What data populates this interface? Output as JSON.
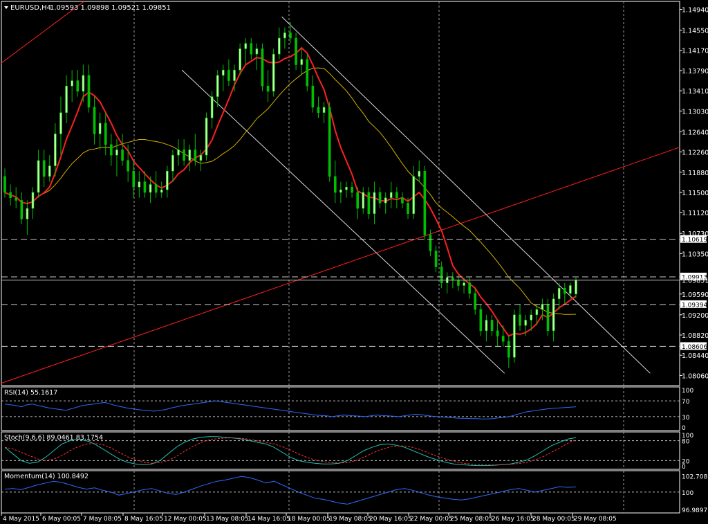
{
  "chart_data": {
    "type": "candlestick",
    "symbol_header": "EURUSD,H4",
    "ohlc_header": "1.09593 1.09898 1.09521 1.09851",
    "current_price": "1.09851",
    "price_axis": {
      "ylim": [
        1.0787,
        1.1509
      ],
      "ticks": [
        "1.14940",
        "1.14550",
        "1.14170",
        "1.13790",
        "1.13410",
        "1.13030",
        "1.12640",
        "1.12260",
        "1.11880",
        "1.11500",
        "1.11120",
        "1.10730",
        "1.10350",
        "1.09590",
        "1.09200",
        "1.08820",
        "1.08440",
        "1.08060"
      ]
    },
    "time_labels": [
      "4 May 2015",
      "6 May 00:05",
      "7 May 08:05",
      "8 May 16:05",
      "12 May 00:05",
      "13 May 08:05",
      "14 May 16:05",
      "18 May 00:05",
      "19 May 08:05",
      "20 May 16:05",
      "22 May 00:05",
      "25 May 08:05",
      "26 May 16:05",
      "28 May 00:05",
      "29 May 08:05"
    ],
    "candles_ohlc": [
      [
        1.118,
        1.1195,
        1.114,
        1.115
      ],
      [
        1.115,
        1.1165,
        1.1125,
        1.114
      ],
      [
        1.114,
        1.116,
        1.112,
        1.1135
      ],
      [
        1.1135,
        1.115,
        1.109,
        1.11
      ],
      [
        1.11,
        1.1135,
        1.107,
        1.112
      ],
      [
        1.112,
        1.116,
        1.11,
        1.115
      ],
      [
        1.115,
        1.123,
        1.114,
        1.121
      ],
      [
        1.121,
        1.123,
        1.116,
        1.118
      ],
      [
        1.118,
        1.122,
        1.117,
        1.12
      ],
      [
        1.12,
        1.128,
        1.118,
        1.126
      ],
      [
        1.126,
        1.133,
        1.122,
        1.13
      ],
      [
        1.13,
        1.137,
        1.128,
        1.135
      ],
      [
        1.135,
        1.138,
        1.132,
        1.136
      ],
      [
        1.136,
        1.138,
        1.133,
        1.134
      ],
      [
        1.134,
        1.139,
        1.132,
        1.137
      ],
      [
        1.137,
        1.139,
        1.13,
        1.131
      ],
      [
        1.131,
        1.133,
        1.124,
        1.126
      ],
      [
        1.126,
        1.13,
        1.123,
        1.128
      ],
      [
        1.128,
        1.13,
        1.122,
        1.124
      ],
      [
        1.124,
        1.126,
        1.12,
        1.122
      ],
      [
        1.122,
        1.125,
        1.118,
        1.123
      ],
      [
        1.123,
        1.126,
        1.12,
        1.121
      ],
      [
        1.121,
        1.124,
        1.117,
        1.119
      ],
      [
        1.119,
        1.121,
        1.114,
        1.116
      ],
      [
        1.116,
        1.119,
        1.114,
        1.117
      ],
      [
        1.117,
        1.119,
        1.114,
        1.115
      ],
      [
        1.115,
        1.118,
        1.113,
        1.1165
      ],
      [
        1.1165,
        1.119,
        1.114,
        1.115
      ],
      [
        1.115,
        1.117,
        1.114,
        1.1155
      ],
      [
        1.1155,
        1.12,
        1.114,
        1.119
      ],
      [
        1.119,
        1.123,
        1.117,
        1.122
      ],
      [
        1.122,
        1.125,
        1.12,
        1.123
      ],
      [
        1.123,
        1.125,
        1.12,
        1.121
      ],
      [
        1.121,
        1.124,
        1.119,
        1.123
      ],
      [
        1.123,
        1.126,
        1.12,
        1.121
      ],
      [
        1.121,
        1.123,
        1.119,
        1.122
      ],
      [
        1.122,
        1.13,
        1.121,
        1.129
      ],
      [
        1.129,
        1.134,
        1.127,
        1.133
      ],
      [
        1.133,
        1.138,
        1.131,
        1.137
      ],
      [
        1.137,
        1.139,
        1.134,
        1.138
      ],
      [
        1.138,
        1.14,
        1.135,
        1.136
      ],
      [
        1.136,
        1.139,
        1.134,
        1.138
      ],
      [
        1.138,
        1.143,
        1.137,
        1.142
      ],
      [
        1.142,
        1.144,
        1.139,
        1.143
      ],
      [
        1.143,
        1.144,
        1.14,
        1.141
      ],
      [
        1.141,
        1.143,
        1.138,
        1.142
      ],
      [
        1.142,
        1.143,
        1.134,
        1.135
      ],
      [
        1.135,
        1.138,
        1.132,
        1.134
      ],
      [
        1.134,
        1.142,
        1.133,
        1.141
      ],
      [
        1.141,
        1.146,
        1.14,
        1.144
      ],
      [
        1.144,
        1.146,
        1.142,
        1.145
      ],
      [
        1.145,
        1.147,
        1.143,
        1.144
      ],
      [
        1.144,
        1.145,
        1.138,
        1.139
      ],
      [
        1.139,
        1.142,
        1.137,
        1.14
      ],
      [
        1.14,
        1.141,
        1.134,
        1.135
      ],
      [
        1.135,
        1.137,
        1.13,
        1.131
      ],
      [
        1.131,
        1.133,
        1.129,
        1.13
      ],
      [
        1.13,
        1.132,
        1.128,
        1.131
      ],
      [
        1.131,
        1.132,
        1.117,
        1.118
      ],
      [
        1.118,
        1.121,
        1.113,
        1.115
      ],
      [
        1.115,
        1.117,
        1.113,
        1.1155
      ],
      [
        1.1155,
        1.117,
        1.114,
        1.116
      ],
      [
        1.116,
        1.117,
        1.114,
        1.115
      ],
      [
        1.115,
        1.116,
        1.11,
        1.112
      ],
      [
        1.112,
        1.116,
        1.111,
        1.115
      ],
      [
        1.115,
        1.116,
        1.11,
        1.111
      ],
      [
        1.111,
        1.117,
        1.109,
        1.115
      ],
      [
        1.115,
        1.116,
        1.112,
        1.113
      ],
      [
        1.113,
        1.115,
        1.111,
        1.114
      ],
      [
        1.114,
        1.117,
        1.112,
        1.115
      ],
      [
        1.115,
        1.116,
        1.112,
        1.114
      ],
      [
        1.114,
        1.115,
        1.112,
        1.113
      ],
      [
        1.113,
        1.114,
        1.11,
        1.111
      ],
      [
        1.111,
        1.12,
        1.11,
        1.118
      ],
      [
        1.118,
        1.121,
        1.117,
        1.119
      ],
      [
        1.119,
        1.12,
        1.106,
        1.107
      ],
      [
        1.107,
        1.108,
        1.103,
        1.104
      ],
      [
        1.104,
        1.105,
        1.1,
        1.101
      ],
      [
        1.101,
        1.102,
        1.097,
        1.098
      ],
      [
        1.098,
        1.1,
        1.096,
        1.099
      ],
      [
        1.099,
        1.1,
        1.097,
        1.0985
      ],
      [
        1.0985,
        1.0995,
        1.0965,
        1.0975
      ],
      [
        1.0975,
        1.099,
        1.096,
        1.098
      ],
      [
        1.098,
        1.099,
        1.095,
        1.096
      ],
      [
        1.096,
        1.097,
        1.092,
        1.093
      ],
      [
        1.093,
        1.094,
        1.088,
        1.089
      ],
      [
        1.089,
        1.092,
        1.087,
        1.091
      ],
      [
        1.091,
        1.092,
        1.088,
        1.089
      ],
      [
        1.089,
        1.091,
        1.086,
        1.088
      ],
      [
        1.088,
        1.09,
        1.086,
        1.087
      ],
      [
        1.087,
        1.088,
        1.082,
        1.084
      ],
      [
        1.084,
        1.093,
        1.083,
        1.092
      ],
      [
        1.092,
        1.094,
        1.089,
        1.09
      ],
      [
        1.09,
        1.092,
        1.088,
        1.091
      ],
      [
        1.091,
        1.093,
        1.089,
        1.092
      ],
      [
        1.092,
        1.094,
        1.09,
        1.093
      ],
      [
        1.093,
        1.095,
        1.091,
        1.094
      ],
      [
        1.094,
        1.095,
        1.088,
        1.089
      ],
      [
        1.089,
        1.096,
        1.087,
        1.095
      ],
      [
        1.095,
        1.098,
        1.093,
        1.097
      ],
      [
        1.097,
        1.098,
        1.094,
        1.096
      ],
      [
        1.096,
        1.098,
        1.095,
        1.0975
      ],
      [
        1.0959,
        1.099,
        1.0952,
        1.0985
      ]
    ],
    "horizontal_levels": [
      "1.10619",
      "1.09913",
      "1.09394",
      "1.08606"
    ],
    "ma_fast_color": "#ff2020",
    "ma_slow_color": "#d6b000",
    "trendline_color": "#ff2020",
    "channel_color": "#dcdcdc",
    "bull_color": "#b8ffa0",
    "bear_color": "#00c000",
    "indicators": [
      {
        "name": "RSI(14) 55.1617",
        "axis_ticks": [
          "100",
          "70",
          "30",
          "0"
        ],
        "levels": [
          70,
          30
        ],
        "ylim": [
          0,
          100
        ],
        "series": [
          {
            "color": "#2f6bff",
            "values": [
              62,
              60,
              58,
              55,
              60,
              62,
              58,
              55,
              52,
              50,
              48,
              46,
              50,
              54,
              58,
              60,
              62,
              64,
              66,
              62,
              58,
              55,
              52,
              50,
              48,
              46,
              45,
              44,
              46,
              48,
              52,
              55,
              58,
              60,
              62,
              64,
              66,
              68,
              70,
              68,
              66,
              64,
              62,
              60,
              58,
              56,
              54,
              52,
              50,
              48,
              46,
              44,
              42,
              40,
              38,
              36,
              34,
              33,
              32,
              30,
              32,
              34,
              33,
              32,
              31,
              30,
              32,
              34,
              33,
              32,
              31,
              30,
              32,
              34,
              36,
              35,
              33,
              31,
              30,
              29,
              28,
              27,
              26,
              26,
              25,
              25,
              24,
              24,
              25,
              27,
              28,
              30,
              34,
              38,
              42,
              44,
              46,
              48,
              50,
              51,
              52,
              53,
              54,
              55
            ]
          }
        ]
      },
      {
        "name": "Stoch(9,6,6) 89.0461 83.1754",
        "axis_ticks": [
          "100",
          "80",
          "20",
          "0"
        ],
        "levels": [
          80,
          20
        ],
        "ylim": [
          0,
          100
        ],
        "series": [
          {
            "color": "#20c0b0",
            "values": [
              60,
              40,
              20,
              12,
              15,
              30,
              50,
              70,
              80,
              85,
              80,
              70,
              55,
              40,
              25,
              15,
              10,
              8,
              10,
              20,
              40,
              60,
              75,
              85,
              90,
              92,
              92,
              90,
              88,
              85,
              80,
              75,
              70,
              60,
              45,
              30,
              20,
              15,
              12,
              10,
              10,
              12,
              20,
              35,
              50,
              60,
              68,
              70,
              66,
              60,
              50,
              40,
              30,
              22,
              15,
              10,
              8,
              6,
              5,
              5,
              6,
              8,
              10,
              15,
              22,
              35,
              50,
              65,
              75,
              85,
              89
            ]
          },
          {
            "color": "#ff3030",
            "values": [
              60,
              55,
              45,
              35,
              25,
              20,
              25,
              35,
              50,
              62,
              70,
              72,
              68,
              58,
              45,
              32,
              22,
              15,
              12,
              14,
              20,
              32,
              48,
              62,
              74,
              82,
              86,
              88,
              88,
              87,
              84,
              80,
              75,
              70,
              62,
              52,
              40,
              30,
              22,
              17,
              14,
              13,
              14,
              20,
              30,
              42,
              52,
              60,
              64,
              64,
              60,
              52,
              42,
              33,
              25,
              18,
              13,
              10,
              8,
              7,
              7,
              8,
              9,
              11,
              15,
              22,
              32,
              45,
              58,
              72,
              83
            ]
          }
        ]
      },
      {
        "name": "Momentum(14) 100.8492",
        "axis_ticks": [
          "102.708",
          "100",
          "96.9897"
        ],
        "levels": [
          100
        ],
        "ylim": [
          96.9,
          103.2
        ],
        "series": [
          {
            "color": "#2f6bff",
            "values": [
              100.5,
              100.6,
              100.4,
              100.8,
              101.2,
              101.5,
              101.8,
              101.6,
              101.2,
              100.8,
              100.5,
              100.7,
              100.3,
              100.0,
              99.5,
              99.8,
              100.1,
              100.4,
              100.6,
              100.2,
              99.8,
              99.6,
              100.0,
              100.5,
              101.0,
              101.4,
              101.8,
              102.0,
              102.3,
              102.6,
              102.4,
              102.0,
              101.5,
              101.8,
              101.2,
              100.6,
              100.0,
              99.5,
              99.0,
              98.8,
              98.5,
              98.2,
              98.0,
              98.4,
              98.8,
              99.2,
              99.6,
              100.0,
              100.4,
              100.6,
              100.3,
              99.9,
              99.5,
              99.2,
              99.0,
              98.8,
              98.7,
              98.9,
              99.2,
              99.5,
              99.8,
              100.1,
              100.4,
              100.6,
              100.3,
              100.0,
              100.3,
              100.6,
              100.9,
              100.8,
              100.85
            ]
          }
        ]
      }
    ]
  }
}
